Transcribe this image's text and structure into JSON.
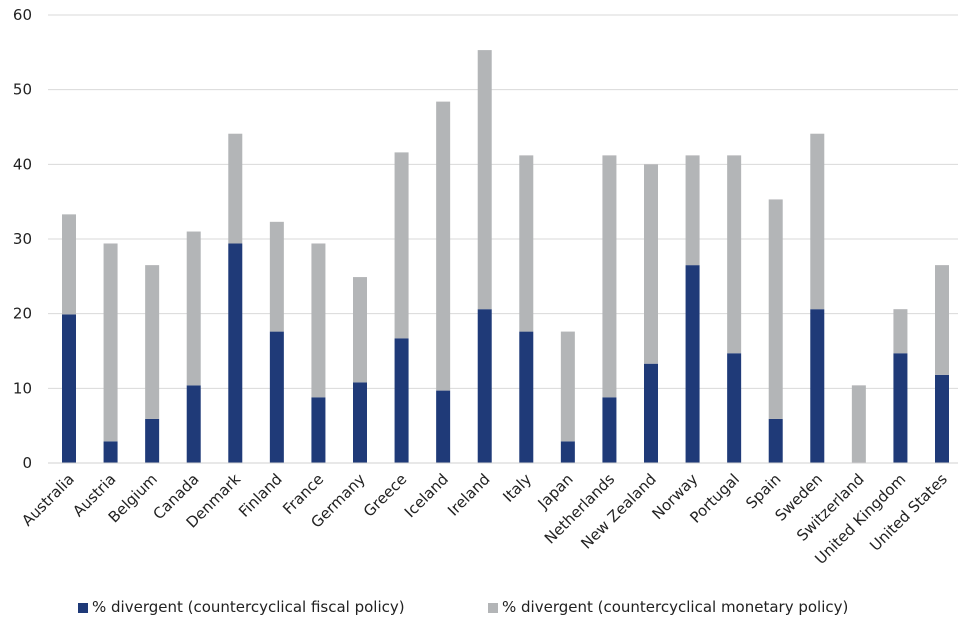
{
  "chart_data": {
    "type": "bar",
    "stacked": true,
    "categories": [
      "Australia",
      "Austria",
      "Belgium",
      "Canada",
      "Denmark",
      "Finland",
      "France",
      "Germany",
      "Greece",
      "Iceland",
      "Ireland",
      "Italy",
      "Japan",
      "Netherlands",
      "New Zealand",
      "Norway",
      "Portugal",
      "Spain",
      "Sweden",
      "Switzerland",
      "United Kingdom",
      "United States"
    ],
    "series": [
      {
        "name": "% divergent (countercyclical fiscal policy)",
        "color": "#1f3a78",
        "values": [
          19.9,
          2.9,
          5.9,
          10.4,
          29.4,
          17.6,
          8.8,
          10.8,
          16.7,
          9.7,
          20.6,
          17.6,
          2.9,
          8.8,
          13.3,
          26.5,
          14.7,
          5.9,
          20.6,
          0,
          14.7,
          11.8
        ]
      },
      {
        "name": "% divergent (countercyclical monetary policy)",
        "color": "#b3b5b7",
        "values": [
          13.4,
          26.5,
          20.6,
          20.6,
          14.7,
          14.7,
          20.6,
          14.1,
          24.9,
          38.7,
          34.7,
          23.6,
          14.7,
          32.4,
          26.7,
          14.7,
          26.5,
          29.4,
          23.5,
          10.4,
          5.9,
          14.7
        ]
      }
    ],
    "ylim": [
      0,
      60
    ],
    "yticks": [
      "0",
      "10",
      "20",
      "30",
      "40",
      "50",
      "60"
    ],
    "grid": "horizontal",
    "legend_position": "bottom"
  }
}
